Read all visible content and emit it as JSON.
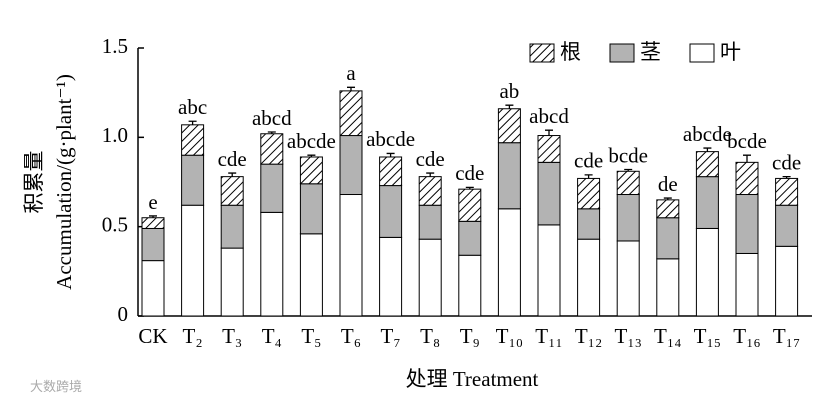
{
  "chart_data": {
    "type": "stacked_bar",
    "y_label_zh": "积累量",
    "y_label_en": "Accumulation/(g·plant⁻¹)",
    "x_label": "处理 Treatment",
    "watermark": "大数跨境",
    "categories": [
      "CK",
      "T₂",
      "T₃",
      "T₄",
      "T₅",
      "T₆",
      "T₇",
      "T₈",
      "T₉",
      "T₁₀",
      "T₁₁",
      "T₁₂",
      "T₁₃",
      "T₁₄",
      "T₁₅",
      "T₁₆",
      "T₁₇"
    ],
    "series": [
      {
        "name": "叶",
        "color": "#ffffff",
        "values": [
          0.31,
          0.62,
          0.38,
          0.58,
          0.46,
          0.68,
          0.44,
          0.43,
          0.34,
          0.6,
          0.51,
          0.43,
          0.42,
          0.32,
          0.49,
          0.35,
          0.39
        ],
        "errors": [
          0.02,
          0.01,
          0.01,
          0.02,
          0.02,
          0.01,
          0.03,
          0.02,
          0.01,
          0.01,
          0.02,
          0.02,
          0.04,
          0.03,
          0.02,
          0.02,
          0.04
        ]
      },
      {
        "name": "茎",
        "color": "#b3b3b3",
        "values": [
          0.18,
          0.28,
          0.24,
          0.27,
          0.28,
          0.33,
          0.29,
          0.19,
          0.19,
          0.37,
          0.35,
          0.17,
          0.26,
          0.23,
          0.29,
          0.33,
          0.23
        ],
        "errors": [
          0.02,
          0.01,
          0.01,
          0.01,
          0.02,
          0.01,
          0.01,
          0.01,
          0.01,
          0.01,
          0.01,
          0.01,
          0.01,
          0.01,
          0.01,
          0.02,
          0.01
        ]
      },
      {
        "name": "根",
        "color": "hatch",
        "values": [
          0.06,
          0.17,
          0.16,
          0.17,
          0.15,
          0.25,
          0.16,
          0.16,
          0.18,
          0.19,
          0.15,
          0.17,
          0.13,
          0.1,
          0.14,
          0.18,
          0.15
        ],
        "errors": [
          0.01,
          0.02,
          0.02,
          0.01,
          0.01,
          0.02,
          0.02,
          0.02,
          0.01,
          0.02,
          0.03,
          0.02,
          0.01,
          0.01,
          0.02,
          0.04,
          0.01
        ]
      }
    ],
    "annotations": [
      "e",
      "abc",
      "cde",
      "abcd",
      "abcde",
      "a",
      "abcde",
      "cde",
      "cde",
      "ab",
      "abcd",
      "cde",
      "bcde",
      "de",
      "abcde",
      "bcde",
      "cde"
    ],
    "ylim": [
      0,
      1.5
    ],
    "yticks": [
      0,
      0.5,
      {
        "value": 1,
        "label": "1.0"
      },
      1.5
    ],
    "legend": "top-right"
  }
}
